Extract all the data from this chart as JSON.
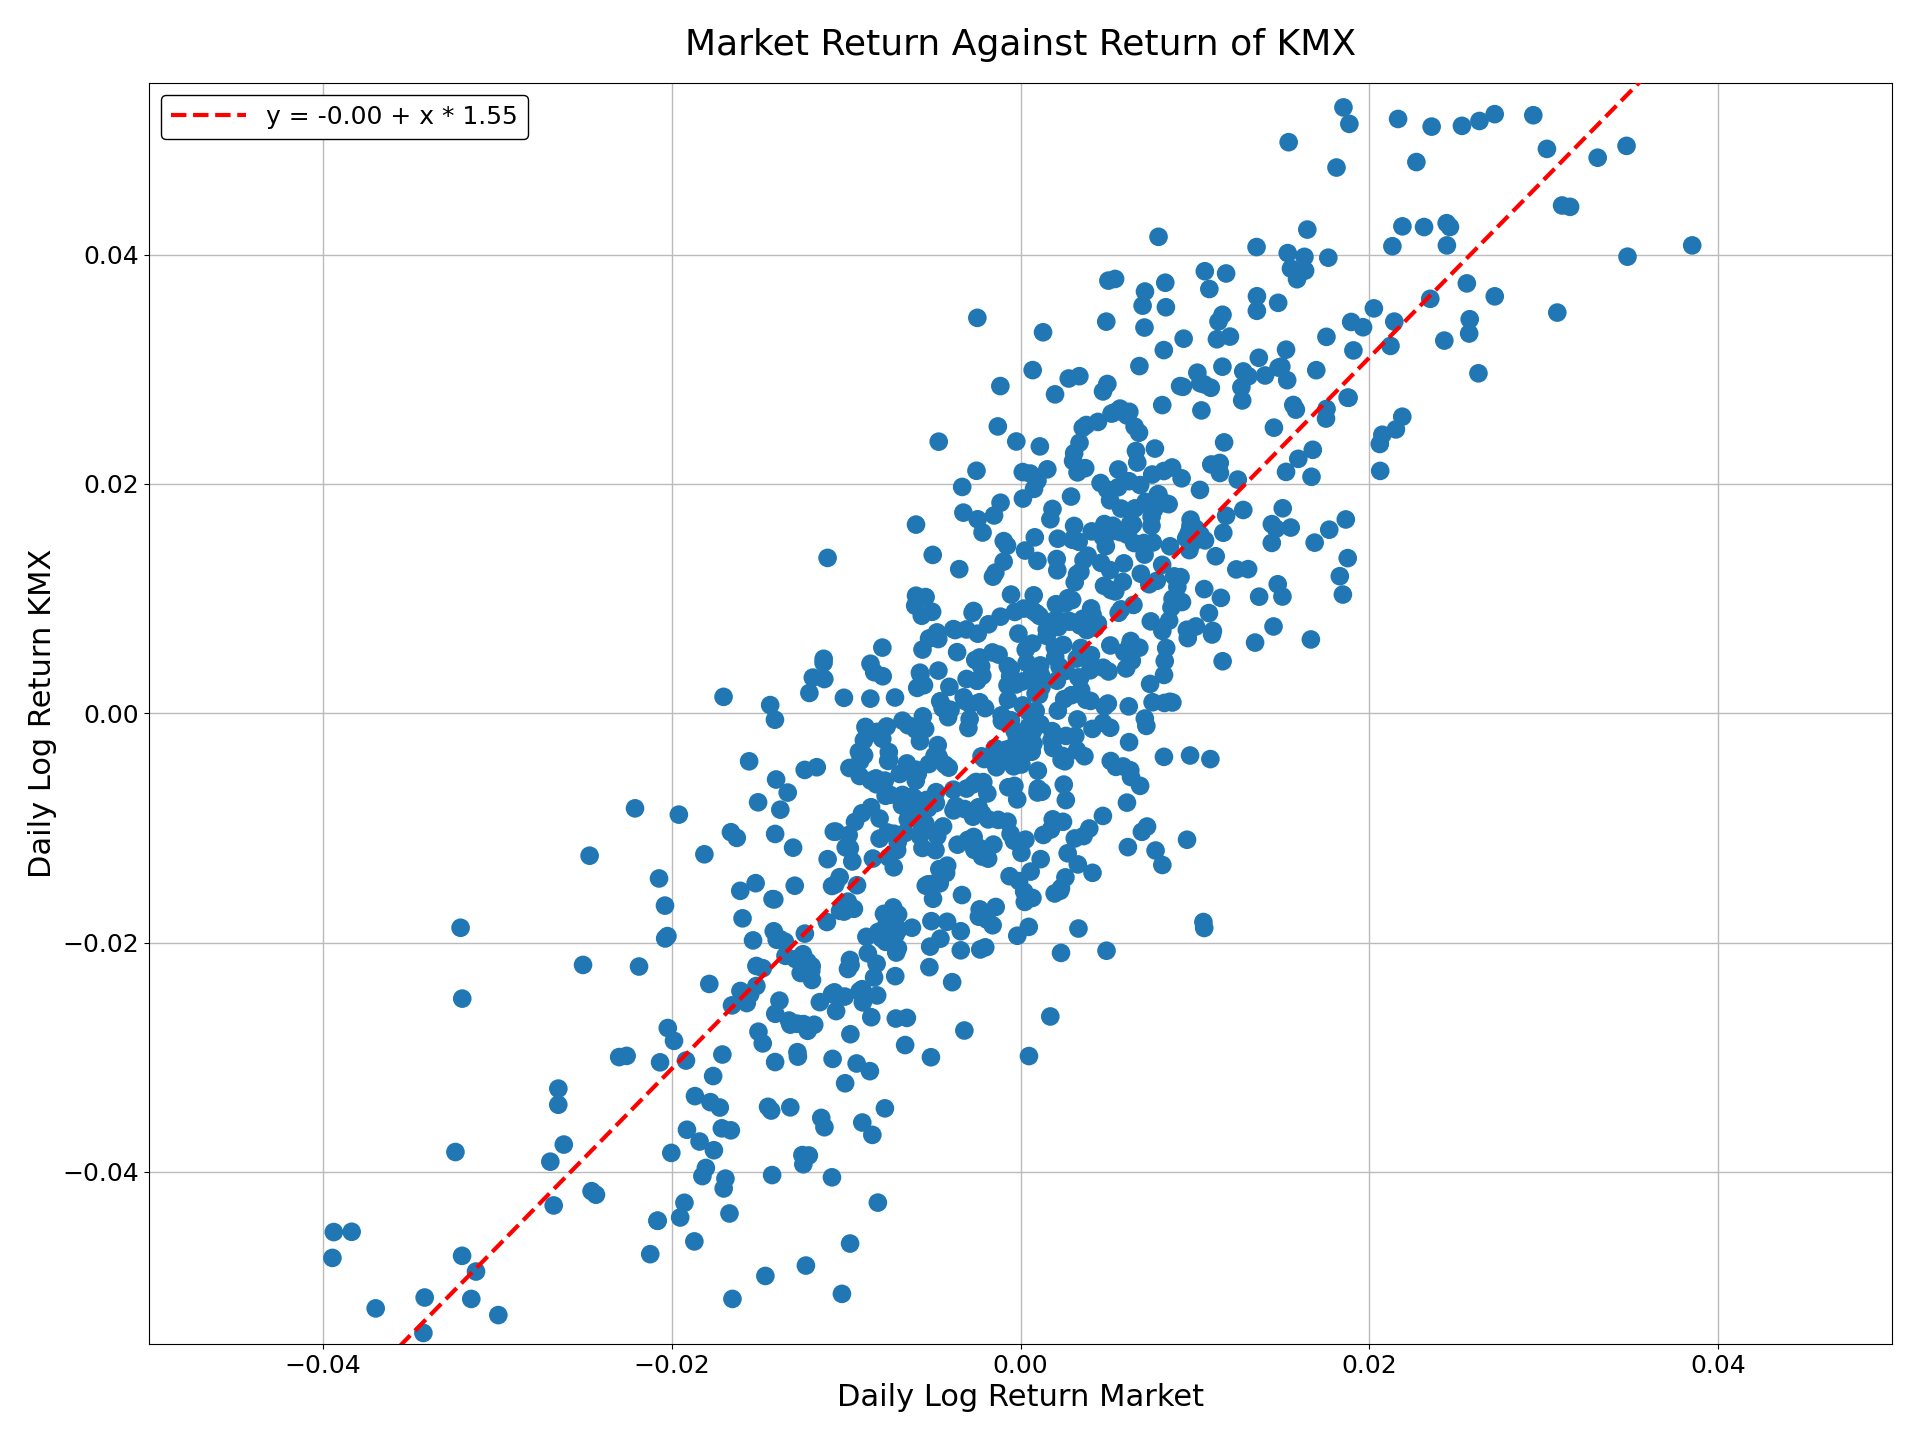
{
  "title": "Market Return Against Return of KMX",
  "xlabel": "Daily Log Return Market",
  "ylabel": "Daily Log Return KMX",
  "legend_label": "y = -0.00 + x * 1.55",
  "intercept": -0.0,
  "slope": 1.55,
  "scatter_color": "#2077b4",
  "line_color": "red",
  "line_style": "--",
  "xlim": [
    -0.05,
    0.05
  ],
  "ylim": [
    -0.055,
    0.055
  ],
  "xticks": [
    -0.04,
    -0.02,
    0.0,
    0.02,
    0.04
  ],
  "yticks": [
    -0.04,
    -0.02,
    0.0,
    0.02,
    0.04
  ],
  "n_points": 800,
  "seed": 42,
  "market_std": 0.01,
  "residual_std": 0.012,
  "dot_size": 180,
  "title_fontsize": 26,
  "label_fontsize": 22,
  "tick_fontsize": 18,
  "legend_fontsize": 18,
  "background_color": "#ffffff",
  "grid_color": "#bbbbbb",
  "line_width": 3.0
}
